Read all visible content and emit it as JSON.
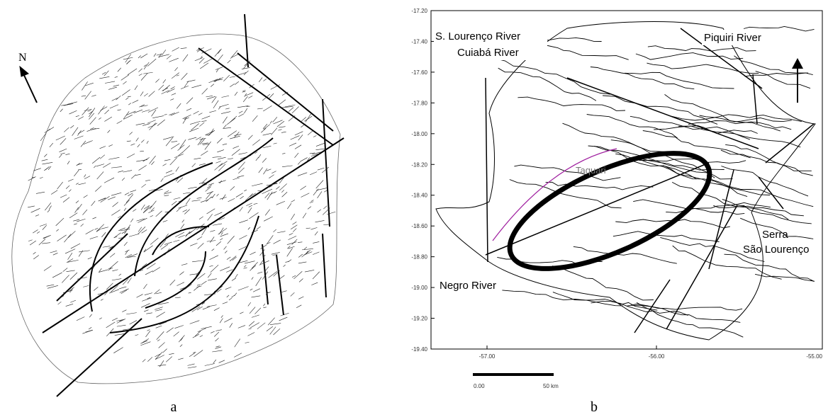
{
  "panel_a": {
    "north": "N",
    "caption": "a"
  },
  "panel_b": {
    "y_ticks": [
      "-17.20",
      "-17.40",
      "-17.60",
      "-17.80",
      "-18.00",
      "-18.20",
      "-18.40",
      "-18.60",
      "-18.80",
      "-19.00",
      "-19.20",
      "-19.40"
    ],
    "x_ticks": [
      "-57.00",
      "-56.00",
      "-55.00"
    ],
    "labels": {
      "lourenco": "S. Lourenço River",
      "cuiaba": "Cuiabá River",
      "piquiri": "Piquiri River",
      "negro": "Negro River",
      "serra": "Serra",
      "sao_lourenco": "São Lourenço",
      "taquari": "Taquari"
    },
    "scale": [
      "0.00",
      "50 km"
    ],
    "caption": "b"
  }
}
